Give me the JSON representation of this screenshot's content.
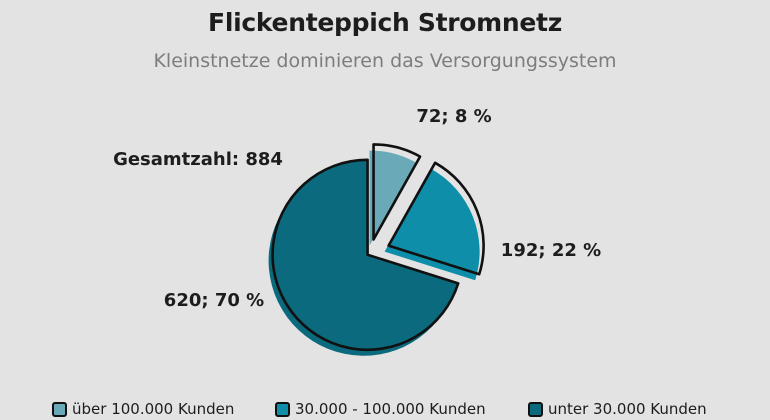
{
  "header": {
    "title": "Flickenteppich Stromnetz",
    "subtitle": "Kleinstnetze dominieren das Versorgungssystem"
  },
  "chart_data": {
    "type": "pie",
    "title": "Flickenteppich Stromnetz",
    "subtitle": "Kleinstnetze dominieren das Versorgungssystem",
    "total_label": "Gesamtzahl: 884",
    "total": 884,
    "slices": [
      {
        "name": "über 100.000 Kunden",
        "value": 72,
        "percent": 8,
        "label": "72; 8 %",
        "color": "#6aaab8"
      },
      {
        "name": "30.000 - 100.000 Kunden",
        "value": 192,
        "percent": 22,
        "label": "192; 22 %",
        "color": "#0e8ea9"
      },
      {
        "name": "unter 30.000 Kunden",
        "value": 620,
        "percent": 70,
        "label": "620; 70 %",
        "color": "#0b6a7d"
      }
    ],
    "legend_position": "bottom",
    "exploded": true
  }
}
